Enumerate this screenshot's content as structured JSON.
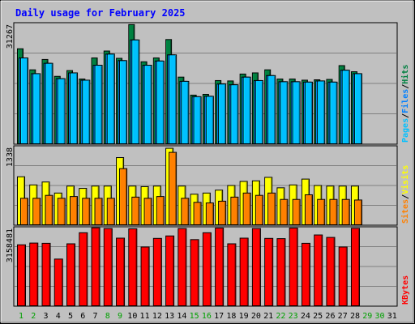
{
  "title": "Daily usage for February 2025",
  "colors": {
    "background": "#c0c0c0",
    "title": "#0000ff",
    "hits": "#008040",
    "files": "#0080ff",
    "pages": "#00c0ff",
    "visits": "#ffff00",
    "sites": "#ff8000",
    "kbytes": "#ff0000",
    "weekday": "#000000",
    "weekend": "#00a000"
  },
  "chart_data": [
    {
      "type": "bar",
      "name": "hits-files-pages",
      "max_label": "31267",
      "ylim": [
        0,
        31267
      ],
      "side_labels": [
        "Pages",
        "Files",
        "Hits"
      ],
      "side_separator": "/",
      "categories": [
        "1",
        "2",
        "3",
        "4",
        "5",
        "6",
        "7",
        "8",
        "9",
        "10",
        "11",
        "12",
        "13",
        "14",
        "15",
        "16",
        "17",
        "18",
        "19",
        "20",
        "21",
        "22",
        "23",
        "24",
        "25",
        "26",
        "27",
        "28",
        "29",
        "30",
        "31"
      ],
      "weekend_days": [
        "1",
        "2",
        "8",
        "9",
        "15",
        "16",
        "22",
        "23",
        "29",
        "30"
      ],
      "series": [
        {
          "name": "Hits",
          "values": [
            25000,
            19500,
            22200,
            17800,
            19300,
            17100,
            22600,
            24400,
            22500,
            31300,
            21600,
            22600,
            27400,
            17600,
            12900,
            13100,
            16700,
            16600,
            18400,
            18700,
            19500,
            17100,
            17100,
            16800,
            16900,
            17000,
            20600,
            19000,
            null,
            null,
            null
          ]
        },
        {
          "name": "Files",
          "values": [
            22600,
            18500,
            21200,
            17200,
            18700,
            16800,
            20700,
            23600,
            21900,
            27300,
            20700,
            21800,
            23400,
            16500,
            12500,
            12600,
            15800,
            15600,
            17600,
            16700,
            18000,
            16400,
            16400,
            16300,
            16600,
            16300,
            19400,
            18500,
            null,
            null,
            null
          ]
        },
        {
          "name": "Pages",
          "values": [
            22600,
            18500,
            21200,
            17200,
            18700,
            16800,
            20700,
            23600,
            21900,
            27300,
            20700,
            21800,
            23400,
            16500,
            12500,
            12600,
            15800,
            15600,
            17600,
            16700,
            18000,
            16400,
            16400,
            16300,
            16600,
            16300,
            19400,
            18500,
            null,
            null,
            null
          ]
        }
      ]
    },
    {
      "type": "bar",
      "name": "visits-sites",
      "max_label": "1338",
      "ylim": [
        0,
        1338
      ],
      "side_labels": [
        "Sites",
        "Visits"
      ],
      "side_separator": "/",
      "series": [
        {
          "name": "Visits",
          "values": [
            840,
            700,
            750,
            560,
            680,
            640,
            680,
            680,
            1170,
            680,
            670,
            680,
            1330,
            680,
            540,
            560,
            610,
            690,
            760,
            770,
            830,
            650,
            700,
            800,
            690,
            680,
            680,
            680,
            null,
            null,
            null
          ]
        },
        {
          "name": "Sites",
          "values": [
            470,
            470,
            520,
            470,
            500,
            470,
            470,
            470,
            980,
            490,
            470,
            500,
            1260,
            470,
            400,
            390,
            420,
            490,
            560,
            520,
            560,
            450,
            450,
            530,
            450,
            450,
            450,
            440,
            null,
            null,
            null
          ]
        }
      ]
    },
    {
      "type": "bar",
      "name": "kbytes",
      "max_label": "3158481",
      "ylim": [
        0,
        3158481
      ],
      "side_labels": [
        "KBytes"
      ],
      "series": [
        {
          "name": "KBytes",
          "values": [
            2510000,
            2580000,
            2570000,
            1930000,
            2550000,
            3000000,
            3200000,
            3170000,
            2780000,
            3158481,
            2420000,
            2770000,
            2870000,
            3170000,
            2720000,
            3000000,
            3190000,
            2550000,
            2780000,
            3170000,
            2770000,
            2760000,
            3190000,
            2570000,
            2910000,
            2810000,
            2420000,
            3180000,
            null,
            null,
            null
          ]
        }
      ]
    }
  ]
}
